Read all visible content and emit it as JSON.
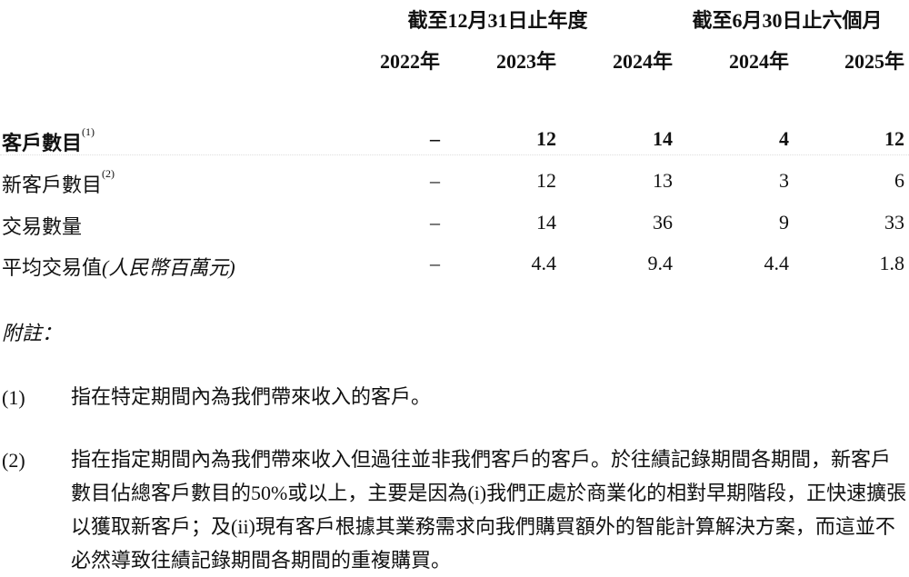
{
  "table": {
    "group_headers": [
      "截至12月31日止年度",
      "截至6月30日止六個月"
    ],
    "columns": [
      "2022年",
      "2023年",
      "2024年",
      "2024年",
      "2025年"
    ],
    "rows": [
      {
        "label": "客戶數目",
        "sup": "(1)",
        "bold": true,
        "values": [
          "–",
          "12",
          "14",
          "4",
          "12"
        ]
      },
      {
        "label": "新客戶數目",
        "sup": "(2)",
        "bold": false,
        "values": [
          "–",
          "12",
          "13",
          "3",
          "6"
        ]
      },
      {
        "label": "交易數量",
        "sup": "",
        "bold": false,
        "values": [
          "–",
          "14",
          "36",
          "9",
          "33"
        ]
      },
      {
        "label": "平均交易值",
        "unit": "(人民幣百萬元)",
        "sup": "",
        "bold": false,
        "values": [
          "–",
          "4.4",
          "9.4",
          "4.4",
          "1.8"
        ]
      }
    ]
  },
  "notes": {
    "heading": "附註：",
    "items": [
      {
        "num": "(1)",
        "text": "指在特定期間內為我們帶來收入的客戶。"
      },
      {
        "num": "(2)",
        "text": "指在指定期間內為我們帶來收入但過往並非我們客戶的客戶。於往績記錄期間各期間，新客戶數目佔總客戶數目的50%或以上，主要是因為(i)我們正處於商業化的相對早期階段，正快速擴張以獲取新客戶；及(ii)現有客戶根據其業務需求向我們購買額外的智能計算解決方案，而這並不必然導致往績記錄期間各期間的重複購買。"
      }
    ]
  }
}
